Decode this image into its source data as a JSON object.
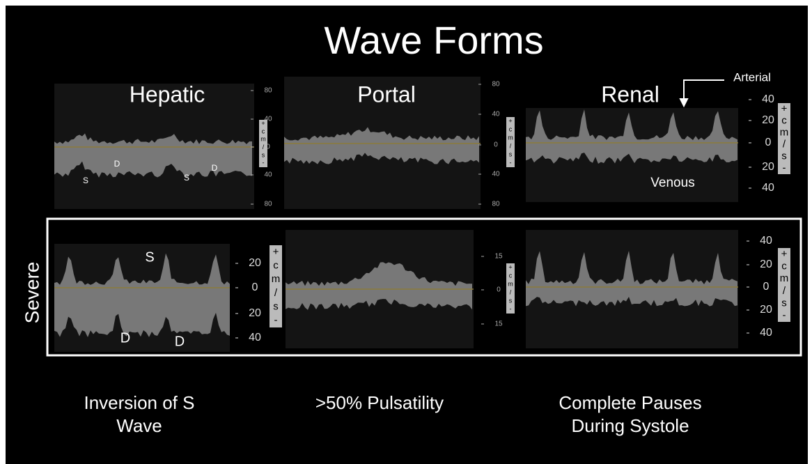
{
  "title": "Wave Forms",
  "panels": [
    {
      "label": "Hepatic",
      "ticks": [
        "80",
        "40",
        "0",
        "40",
        "80"
      ],
      "markers": [
        "S",
        "D",
        "S",
        "D"
      ]
    },
    {
      "label": "Portal",
      "ticks": [
        "80",
        "40",
        "0",
        "40",
        "80"
      ]
    },
    {
      "label": "Renal",
      "ticks": [
        "40",
        "20",
        "0",
        "20",
        "40"
      ],
      "annotations": [
        "Arterial",
        "Venous"
      ]
    }
  ],
  "severe": {
    "label": "Severe",
    "panels": [
      {
        "ticks": [
          "20",
          "0",
          "20",
          "40"
        ],
        "markers": [
          "S",
          "D",
          "D"
        ]
      },
      {
        "ticks": [
          "15",
          "0",
          "15"
        ]
      },
      {
        "ticks": [
          "40",
          "20",
          "0",
          "20",
          "40"
        ]
      }
    ]
  },
  "unit_label": [
    "+",
    "c",
    "m",
    "/",
    "s",
    "-"
  ],
  "captions": [
    [
      "Inversion of S",
      "Wave"
    ],
    [
      ">50% Pulsatility"
    ],
    [
      "Complete Pauses",
      "During Systole"
    ]
  ]
}
